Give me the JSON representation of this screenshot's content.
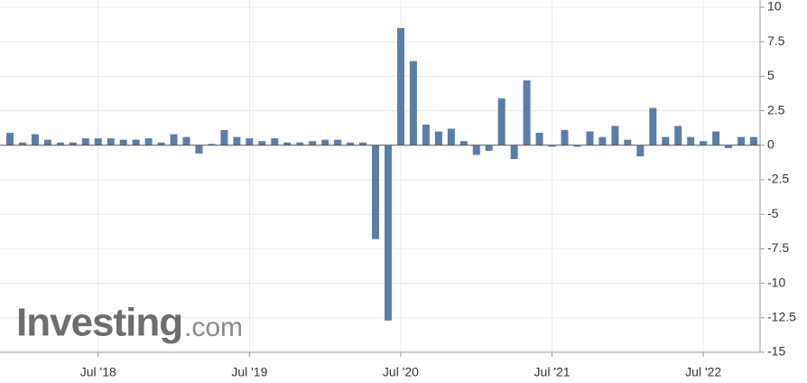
{
  "chart_data": {
    "type": "bar",
    "categories": [
      null,
      null,
      null,
      null,
      null,
      null,
      null,
      "Jul '18",
      null,
      null,
      null,
      null,
      null,
      null,
      null,
      null,
      null,
      null,
      null,
      "Jul '19",
      null,
      null,
      null,
      null,
      null,
      null,
      null,
      null,
      null,
      null,
      null,
      "Jul '20",
      null,
      null,
      null,
      null,
      null,
      null,
      null,
      null,
      null,
      null,
      null,
      "Jul '21",
      null,
      null,
      null,
      null,
      null,
      null,
      null,
      null,
      null,
      null,
      null,
      "Jul '22",
      null,
      null,
      null,
      null
    ],
    "values": [
      0.9,
      0.2,
      0.8,
      0.4,
      0.2,
      0.2,
      0.5,
      0.5,
      0.5,
      0.4,
      0.4,
      0.5,
      0.2,
      0.8,
      0.6,
      -0.6,
      0.1,
      1.1,
      0.6,
      0.5,
      0.3,
      0.5,
      0.2,
      0.2,
      0.3,
      0.4,
      0.4,
      0.2,
      0.2,
      -6.8,
      -12.7,
      8.5,
      6.1,
      1.5,
      1.0,
      1.2,
      0.3,
      -0.7,
      -0.4,
      3.4,
      -1.0,
      4.7,
      0.9,
      -0.1,
      1.1,
      -0.1,
      1.0,
      0.6,
      1.4,
      0.4,
      -0.8,
      2.7,
      0.6,
      1.4,
      0.6,
      0.3,
      1.0,
      -0.2,
      0.6,
      0.6
    ],
    "color": "#5b7ea8",
    "ylim": [
      -15,
      10
    ],
    "yticks": [
      10,
      7.5,
      5,
      2.5,
      0,
      -2.5,
      -5,
      -7.5,
      -10,
      -12.5,
      -15
    ],
    "grid": true
  },
  "watermark": {
    "brand": "Investing",
    "suffix": ".com"
  }
}
